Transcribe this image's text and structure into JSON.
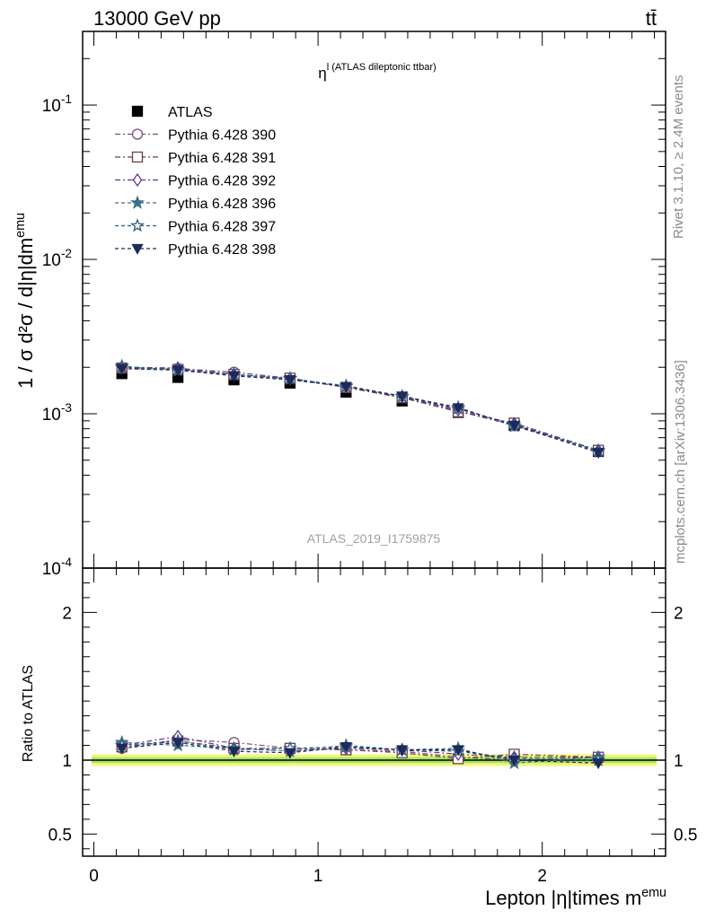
{
  "header": {
    "energy": "13000 GeV pp",
    "process": "tt̄"
  },
  "side": {
    "rivet": "Rivet 3.1.10, ≥ 2.4M events",
    "mcplots": "mcplots.cern.ch [arXiv:1306.3436]"
  },
  "chart_data": [
    {
      "type": "scatter",
      "title": "η^l (ATLAS dileptonic ttbar)",
      "watermark": "ATLAS_2019_I1759875",
      "ylabel": "1 / σ d²σ / d|η|dm^emu",
      "yscale": "log",
      "ylim": [
        0.0001,
        0.3
      ],
      "xlim": [
        -0.05,
        2.55
      ],
      "y_tick_labels": [
        "10^-4",
        "10^-3",
        "10^-2",
        "10^-1"
      ],
      "x": [
        0.125,
        0.375,
        0.625,
        0.875,
        1.125,
        1.375,
        1.625,
        1.875,
        2.25
      ],
      "series": [
        {
          "name": "ATLAS",
          "color": "#000000",
          "marker": "filled-square",
          "values": [
            0.00182,
            0.00172,
            0.00166,
            0.00158,
            0.00138,
            0.00121,
            0.00102,
            0.00084,
            0.00057
          ]
        },
        {
          "name": "Pythia 6.428 390",
          "color": "#7a4b7e",
          "marker": "open-circle",
          "values": [
            0.00196,
            0.00196,
            0.00186,
            0.0017,
            0.00148,
            0.00128,
            0.00104,
            0.00084,
            0.00058
          ]
        },
        {
          "name": "Pythia 6.428 391",
          "color": "#6b3f4f",
          "marker": "open-square",
          "values": [
            0.00198,
            0.00194,
            0.0018,
            0.0017,
            0.00148,
            0.00127,
            0.00103,
            0.00087,
            0.00058
          ]
        },
        {
          "name": "Pythia 6.428 392",
          "color": "#5e3a8c",
          "marker": "open-diamond",
          "values": [
            0.002,
            0.00198,
            0.0018,
            0.00168,
            0.00149,
            0.00129,
            0.00106,
            0.00086,
            0.00058
          ]
        },
        {
          "name": "Pythia 6.428 396",
          "color": "#3d6e8a",
          "marker": "filled-star",
          "values": [
            0.00204,
            0.0019,
            0.0018,
            0.00168,
            0.00152,
            0.0013,
            0.0011,
            0.00083,
            0.00058
          ]
        },
        {
          "name": "Pythia 6.428 397",
          "color": "#2e5e80",
          "marker": "open-star",
          "values": [
            0.002,
            0.00194,
            0.00178,
            0.0017,
            0.0015,
            0.00129,
            0.00108,
            0.00085,
            0.00057
          ]
        },
        {
          "name": "Pythia 6.428 398",
          "color": "#1c2a5c",
          "marker": "filled-triangle-down",
          "values": [
            0.00196,
            0.00192,
            0.00176,
            0.00166,
            0.0015,
            0.0013,
            0.00109,
            0.00084,
            0.00056
          ]
        }
      ],
      "legend_position": "top-left"
    },
    {
      "type": "scatter",
      "ylabel": "Ratio to ATLAS",
      "xlabel": "Lepton |η|times m^emu",
      "ylim": [
        0.35,
        2.3
      ],
      "xlim": [
        -0.05,
        2.55
      ],
      "x_tick_labels": [
        "0",
        "1",
        "2"
      ],
      "y_tick_labels": [
        "0.5",
        "1",
        "2"
      ],
      "band": {
        "yellow": [
          0.96,
          1.04
        ],
        "green": [
          0.98,
          1.02
        ]
      },
      "x": [
        0.125,
        0.375,
        0.625,
        0.875,
        1.125,
        1.375,
        1.625,
        1.875,
        2.25
      ],
      "series": [
        {
          "name": "Pythia 6.428 390",
          "values": [
            1.08,
            1.14,
            1.12,
            1.08,
            1.07,
            1.06,
            1.02,
            1.0,
            1.02
          ]
        },
        {
          "name": "Pythia 6.428 391",
          "values": [
            1.09,
            1.13,
            1.08,
            1.08,
            1.07,
            1.05,
            1.01,
            1.04,
            1.02
          ]
        },
        {
          "name": "Pythia 6.428 392",
          "values": [
            1.1,
            1.16,
            1.08,
            1.06,
            1.08,
            1.07,
            1.04,
            1.02,
            1.02
          ]
        },
        {
          "name": "Pythia 6.428 396",
          "values": [
            1.12,
            1.1,
            1.08,
            1.06,
            1.1,
            1.07,
            1.08,
            0.98,
            1.02
          ]
        },
        {
          "name": "Pythia 6.428 397",
          "values": [
            1.1,
            1.13,
            1.07,
            1.08,
            1.09,
            1.07,
            1.06,
            1.01,
            1.0
          ]
        },
        {
          "name": "Pythia 6.428 398",
          "values": [
            1.08,
            1.12,
            1.06,
            1.05,
            1.09,
            1.07,
            1.07,
            1.0,
            0.98
          ]
        }
      ]
    }
  ]
}
